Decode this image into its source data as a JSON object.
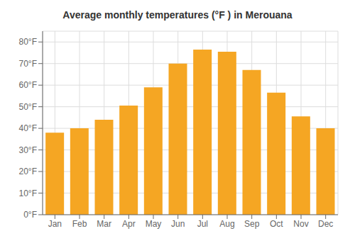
{
  "chart_data": {
    "type": "bar",
    "title": "Average monthly temperatures (°F ) in Merouana",
    "categories": [
      "Jan",
      "Feb",
      "Mar",
      "Apr",
      "May",
      "Jun",
      "Jul",
      "Aug",
      "Sep",
      "Oct",
      "Nov",
      "Dec"
    ],
    "values": [
      38,
      40,
      44,
      50.5,
      59,
      70,
      76.5,
      75.5,
      67,
      56.5,
      45.5,
      40
    ],
    "color": "#F5A623",
    "ylim": [
      0,
      85
    ],
    "yticks": [
      {
        "value": 0,
        "label": "0°F"
      },
      {
        "value": 10,
        "label": "10°F"
      },
      {
        "value": 20,
        "label": "20°F"
      },
      {
        "value": 30,
        "label": "30°F"
      },
      {
        "value": 40,
        "label": "40°F"
      },
      {
        "value": 50,
        "label": "50°F"
      },
      {
        "value": 60,
        "label": "60°F"
      },
      {
        "value": 70,
        "label": "70°F"
      },
      {
        "value": 80,
        "label": "80°F"
      }
    ],
    "grid": true
  }
}
